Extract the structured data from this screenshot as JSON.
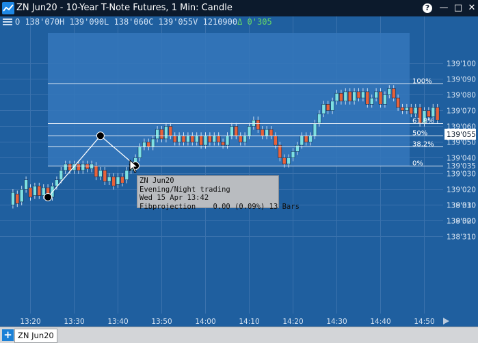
{
  "window": {
    "title": "ZN Jun20 - 10-Year T-Note Futures, 1 Min: Candle",
    "help_label": "?",
    "minimize_label": "—",
    "maximize_label": "□",
    "close_label": "✕"
  },
  "ohlc": {
    "text": "O 138'070H 139'090L 138'060C 139'055V 1210900",
    "change": "Δ 0'305"
  },
  "colors": {
    "background": "#1f5f9f",
    "fib_zone": "#3577bb",
    "up_candle": "#7de0e3",
    "down_candle": "#e8623a",
    "gridline": "#3b72ad",
    "fib_line": "#e7eef6",
    "price_tag_bg": "#ffffff"
  },
  "chart_data": {
    "type": "candlestick",
    "x_ticks": [
      "13:20",
      "13:30",
      "13:40",
      "13:50",
      "14:00",
      "14:10",
      "14:20",
      "14:30",
      "14:40",
      "14:50"
    ],
    "y_ticks": [
      "139'100",
      "139'090",
      "139'080",
      "139'070",
      "139'060",
      "139'050",
      "139'040",
      "139'035",
      "139'030",
      "139'020",
      "139'010",
      "139'000",
      "138'330",
      "138'320",
      "138'310"
    ],
    "last_price": "139'055",
    "fib_levels": [
      {
        "label": "100%",
        "price": "139'087"
      },
      {
        "label": "61.8%",
        "price": "139'062"
      },
      {
        "label": "50%",
        "price": "139'054"
      },
      {
        "label": "38.2%",
        "price": "139'047"
      },
      {
        "label": "0%",
        "price": "139'035"
      }
    ],
    "fib_points": [
      {
        "time": "13:24",
        "price": "139'015"
      },
      {
        "time": "13:36",
        "price": "139'054"
      },
      {
        "time": "13:44",
        "price": "139'035"
      }
    ],
    "candles_note": "approx. one-minute candles 13:16-14:58"
  },
  "tooltip": {
    "line1": "ZN Jun20",
    "line2": "Evening/Night trading",
    "line3": "Wed 15 Apr 13:42",
    "line4": "Fibprojection    0.00 (0.09%) 13 Bars"
  },
  "tabs": {
    "add_label": "+",
    "active_label": "ZN Jun20"
  }
}
